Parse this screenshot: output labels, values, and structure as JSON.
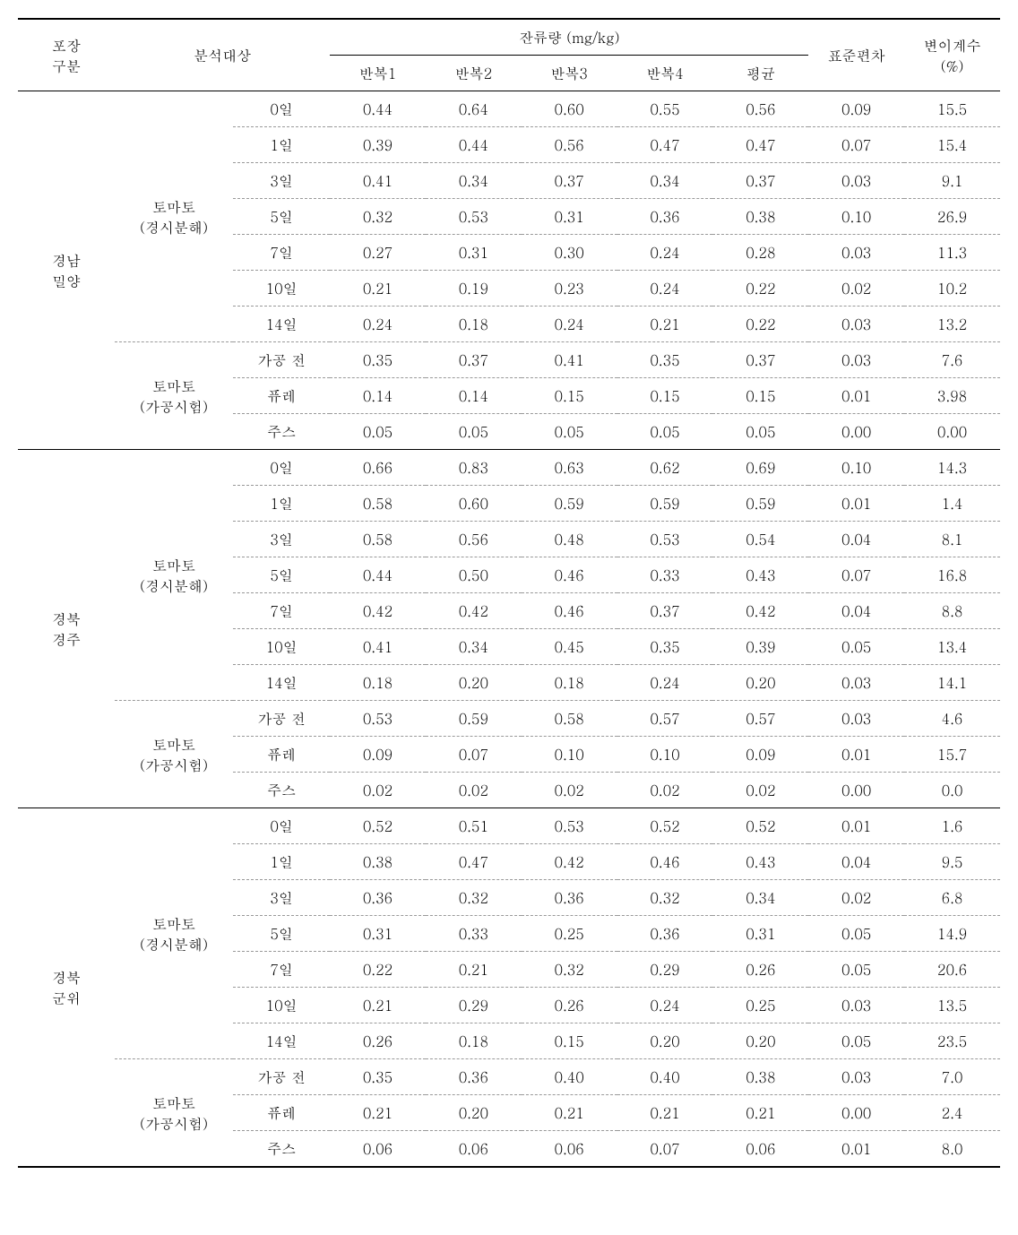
{
  "headers": {
    "pojang": "포장\n구분",
    "bunseok": "분석대상",
    "janryu": "잔류량 (mg/kg)",
    "banbok1": "반복1",
    "banbok2": "반복2",
    "banbok3": "반복3",
    "banbok4": "반복4",
    "pyeonggyun": "평균",
    "pyojun": "표준편차",
    "byeoni": "변이계수\n(%)"
  },
  "groups": [
    {
      "region": "경남\n밀양",
      "subgroups": [
        {
          "label": "토마토\n(경시분해)",
          "rows": [
            {
              "cond": "0일",
              "r1": "0.44",
              "r2": "0.64",
              "r3": "0.60",
              "r4": "0.55",
              "avg": "0.56",
              "sd": "0.09",
              "cv": "15.5"
            },
            {
              "cond": "1일",
              "r1": "0.39",
              "r2": "0.44",
              "r3": "0.56",
              "r4": "0.47",
              "avg": "0.47",
              "sd": "0.07",
              "cv": "15.4"
            },
            {
              "cond": "3일",
              "r1": "0.41",
              "r2": "0.34",
              "r3": "0.37",
              "r4": "0.34",
              "avg": "0.37",
              "sd": "0.03",
              "cv": "9.1"
            },
            {
              "cond": "5일",
              "r1": "0.32",
              "r2": "0.53",
              "r3": "0.31",
              "r4": "0.36",
              "avg": "0.38",
              "sd": "0.10",
              "cv": "26.9"
            },
            {
              "cond": "7일",
              "r1": "0.27",
              "r2": "0.31",
              "r3": "0.30",
              "r4": "0.24",
              "avg": "0.28",
              "sd": "0.03",
              "cv": "11.3"
            },
            {
              "cond": "10일",
              "r1": "0.21",
              "r2": "0.19",
              "r3": "0.23",
              "r4": "0.24",
              "avg": "0.22",
              "sd": "0.02",
              "cv": "10.2"
            },
            {
              "cond": "14일",
              "r1": "0.24",
              "r2": "0.18",
              "r3": "0.24",
              "r4": "0.21",
              "avg": "0.22",
              "sd": "0.03",
              "cv": "13.2"
            }
          ]
        },
        {
          "label": "토마토\n(가공시험)",
          "rows": [
            {
              "cond": "가공 전",
              "r1": "0.35",
              "r2": "0.37",
              "r3": "0.41",
              "r4": "0.35",
              "avg": "0.37",
              "sd": "0.03",
              "cv": "7.6"
            },
            {
              "cond": "퓨레",
              "r1": "0.14",
              "r2": "0.14",
              "r3": "0.15",
              "r4": "0.15",
              "avg": "0.15",
              "sd": "0.01",
              "cv": "3.98"
            },
            {
              "cond": "주스",
              "r1": "0.05",
              "r2": "0.05",
              "r3": "0.05",
              "r4": "0.05",
              "avg": "0.05",
              "sd": "0.00",
              "cv": "0.00"
            }
          ]
        }
      ]
    },
    {
      "region": "경북\n경주",
      "subgroups": [
        {
          "label": "토마토\n(경시분해)",
          "rows": [
            {
              "cond": "0일",
              "r1": "0.66",
              "r2": "0.83",
              "r3": "0.63",
              "r4": "0.62",
              "avg": "0.69",
              "sd": "0.10",
              "cv": "14.3"
            },
            {
              "cond": "1일",
              "r1": "0.58",
              "r2": "0.60",
              "r3": "0.59",
              "r4": "0.59",
              "avg": "0.59",
              "sd": "0.01",
              "cv": "1.4"
            },
            {
              "cond": "3일",
              "r1": "0.58",
              "r2": "0.56",
              "r3": "0.48",
              "r4": "0.53",
              "avg": "0.54",
              "sd": "0.04",
              "cv": "8.1"
            },
            {
              "cond": "5일",
              "r1": "0.44",
              "r2": "0.50",
              "r3": "0.46",
              "r4": "0.33",
              "avg": "0.43",
              "sd": "0.07",
              "cv": "16.8"
            },
            {
              "cond": "7일",
              "r1": "0.42",
              "r2": "0.42",
              "r3": "0.46",
              "r4": "0.37",
              "avg": "0.42",
              "sd": "0.04",
              "cv": "8.8"
            },
            {
              "cond": "10일",
              "r1": "0.41",
              "r2": "0.34",
              "r3": "0.45",
              "r4": "0.35",
              "avg": "0.39",
              "sd": "0.05",
              "cv": "13.4"
            },
            {
              "cond": "14일",
              "r1": "0.18",
              "r2": "0.20",
              "r3": "0.18",
              "r4": "0.24",
              "avg": "0.20",
              "sd": "0.03",
              "cv": "14.1"
            }
          ]
        },
        {
          "label": "토마토\n(가공시험)",
          "rows": [
            {
              "cond": "가공 전",
              "r1": "0.53",
              "r2": "0.59",
              "r3": "0.58",
              "r4": "0.57",
              "avg": "0.57",
              "sd": "0.03",
              "cv": "4.6"
            },
            {
              "cond": "퓨레",
              "r1": "0.09",
              "r2": "0.07",
              "r3": "0.10",
              "r4": "0.10",
              "avg": "0.09",
              "sd": "0.01",
              "cv": "15.7"
            },
            {
              "cond": "주스",
              "r1": "0.02",
              "r2": "0.02",
              "r3": "0.02",
              "r4": "0.02",
              "avg": "0.02",
              "sd": "0.00",
              "cv": "0.0"
            }
          ]
        }
      ]
    },
    {
      "region": "경북\n군위",
      "subgroups": [
        {
          "label": "토마토\n(경시분해)",
          "rows": [
            {
              "cond": "0일",
              "r1": "0.52",
              "r2": "0.51",
              "r3": "0.53",
              "r4": "0.52",
              "avg": "0.52",
              "sd": "0.01",
              "cv": "1.6"
            },
            {
              "cond": "1일",
              "r1": "0.38",
              "r2": "0.47",
              "r3": "0.42",
              "r4": "0.46",
              "avg": "0.43",
              "sd": "0.04",
              "cv": "9.5"
            },
            {
              "cond": "3일",
              "r1": "0.36",
              "r2": "0.32",
              "r3": "0.36",
              "r4": "0.32",
              "avg": "0.34",
              "sd": "0.02",
              "cv": "6.8"
            },
            {
              "cond": "5일",
              "r1": "0.31",
              "r2": "0.33",
              "r3": "0.25",
              "r4": "0.36",
              "avg": "0.31",
              "sd": "0.05",
              "cv": "14.9"
            },
            {
              "cond": "7일",
              "r1": "0.22",
              "r2": "0.21",
              "r3": "0.32",
              "r4": "0.29",
              "avg": "0.26",
              "sd": "0.05",
              "cv": "20.6"
            },
            {
              "cond": "10일",
              "r1": "0.21",
              "r2": "0.29",
              "r3": "0.26",
              "r4": "0.24",
              "avg": "0.25",
              "sd": "0.03",
              "cv": "13.5"
            },
            {
              "cond": "14일",
              "r1": "0.26",
              "r2": "0.18",
              "r3": "0.15",
              "r4": "0.20",
              "avg": "0.20",
              "sd": "0.05",
              "cv": "23.5"
            }
          ]
        },
        {
          "label": "토마토\n(가공시험)",
          "rows": [
            {
              "cond": "가공 전",
              "r1": "0.35",
              "r2": "0.36",
              "r3": "0.40",
              "r4": "0.40",
              "avg": "0.38",
              "sd": "0.03",
              "cv": "7.0"
            },
            {
              "cond": "퓨레",
              "r1": "0.21",
              "r2": "0.20",
              "r3": "0.21",
              "r4": "0.21",
              "avg": "0.21",
              "sd": "0.00",
              "cv": "2.4"
            },
            {
              "cond": "주스",
              "r1": "0.06",
              "r2": "0.06",
              "r3": "0.06",
              "r4": "0.07",
              "avg": "0.06",
              "sd": "0.01",
              "cv": "8.0"
            }
          ]
        }
      ]
    }
  ]
}
